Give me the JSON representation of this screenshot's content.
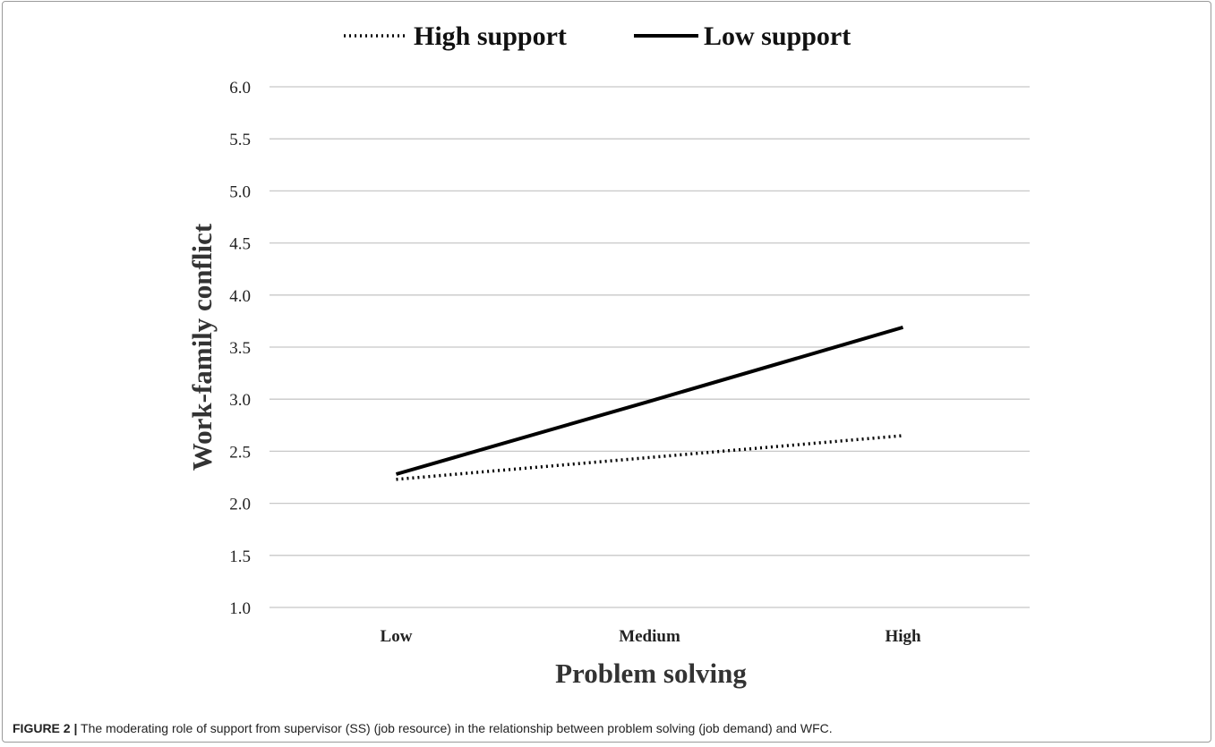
{
  "caption": {
    "label": "FIGURE 2 |",
    "text": " The moderating role of support from supervisor (SS) (job resource) in the relationship between problem solving (job demand) and WFC."
  },
  "chart_data": {
    "type": "line",
    "title": "",
    "xlabel": "Problem solving",
    "ylabel": "Work-family conflict",
    "categories": [
      "Low",
      "Medium",
      "High"
    ],
    "ylim": [
      1.0,
      6.0
    ],
    "yticks": [
      "1.0",
      "1.5",
      "2.0",
      "2.5",
      "3.0",
      "3.5",
      "4.0",
      "4.5",
      "5.0",
      "5.5",
      "6.0"
    ],
    "grid": true,
    "legend_position": "top",
    "series": [
      {
        "name": "High support",
        "values": [
          2.23,
          2.44,
          2.65
        ],
        "style": "dotted",
        "color": "#000000"
      },
      {
        "name": "Low support",
        "values": [
          2.28,
          2.98,
          3.69
        ],
        "style": "solid",
        "color": "#000000"
      }
    ]
  }
}
